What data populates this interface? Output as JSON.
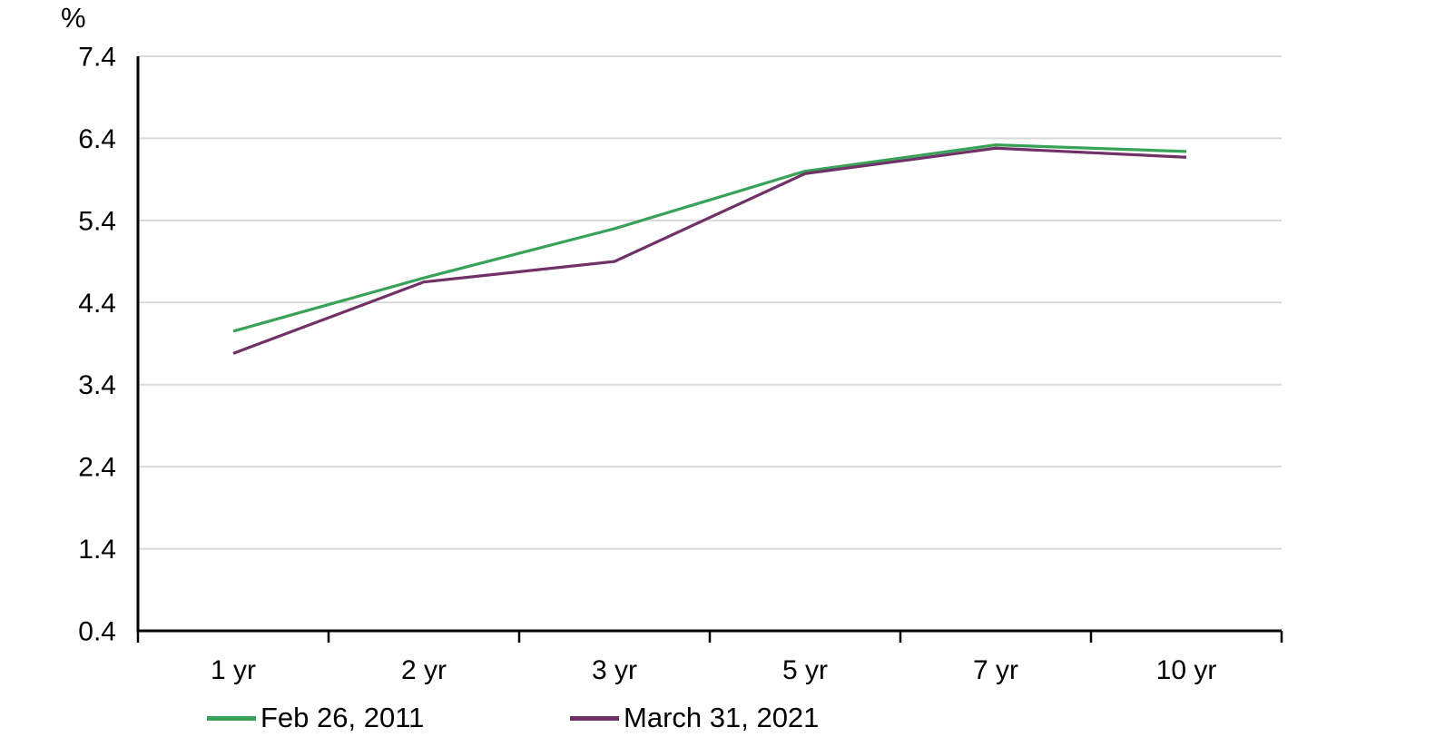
{
  "chart_data": {
    "type": "line",
    "ylabel": "%",
    "categories": [
      "1 yr",
      "2 yr",
      "3 yr",
      "5 yr",
      "7 yr",
      "10 yr"
    ],
    "series": [
      {
        "name": "Feb 26, 2011",
        "color": "#39a259",
        "values": [
          4.05,
          4.7,
          5.3,
          6.0,
          6.32,
          6.24
        ]
      },
      {
        "name": "March 31, 2021",
        "color": "#703168",
        "values": [
          3.78,
          4.65,
          4.9,
          5.97,
          6.28,
          6.17
        ]
      }
    ],
    "ylim": [
      0.4,
      7.4
    ],
    "ytick_step": 1.0,
    "ytick_labels": [
      "7.4",
      "6.4",
      "5.4",
      "4.4",
      "3.4",
      "2.4",
      "1.4",
      "0.4"
    ],
    "grid": "horizontal gridlines on",
    "legend_position": "bottom-left",
    "colors": {
      "gridline": "#d9d9d9",
      "axis": "#000000",
      "text": "#000000",
      "background": "#ffffff"
    }
  }
}
